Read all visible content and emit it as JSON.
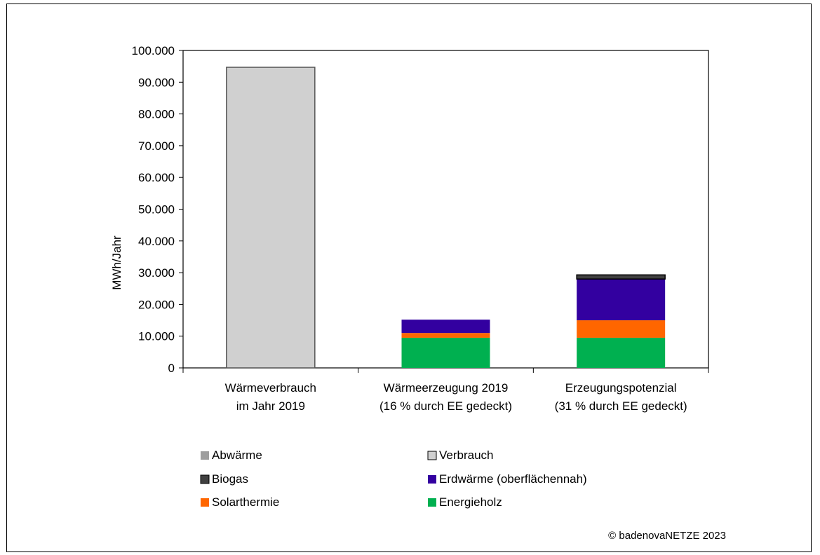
{
  "chart_data": {
    "type": "bar",
    "stacked": true,
    "ylabel": "MWh/Jahr",
    "ylim": [
      0,
      100000
    ],
    "yticks": [
      0,
      10000,
      20000,
      30000,
      40000,
      50000,
      60000,
      70000,
      80000,
      90000,
      100000
    ],
    "ytick_labels": [
      "0",
      "10.000",
      "20.000",
      "30.000",
      "40.000",
      "50.000",
      "60.000",
      "70.000",
      "80.000",
      "90.000",
      "100.000"
    ],
    "categories": [
      [
        "Wärmeverbrauch",
        "im Jahr 2019"
      ],
      [
        "Wärmeerzeugung 2019",
        "(16 % durch EE gedeckt)"
      ],
      [
        "Erzeugungspotenzial",
        "(31 % durch EE gedeckt)"
      ]
    ],
    "series": [
      {
        "name": "Energieholz",
        "color": "#00b050",
        "values": [
          0,
          9500,
          9500
        ]
      },
      {
        "name": "Solarthermie",
        "color": "#ff6600",
        "values": [
          0,
          1500,
          5500
        ]
      },
      {
        "name": "Erdwärme (oberflächennah)",
        "color": "#3300a0",
        "values": [
          0,
          4200,
          13000
        ]
      },
      {
        "name": "Biogas",
        "color": "#404040",
        "values": [
          0,
          0,
          1300
        ]
      },
      {
        "name": "Abwärme",
        "color": "#9e9e9e",
        "values": [
          0,
          0,
          0
        ]
      },
      {
        "name": "Verbrauch",
        "color": "#d0d0d0",
        "values": [
          94700,
          0,
          0
        ]
      }
    ],
    "legend": [
      {
        "name": "Abwärme",
        "color": "#9e9e9e"
      },
      {
        "name": "Verbrauch",
        "color": "#d0d0d0"
      },
      {
        "name": "Biogas",
        "color": "#404040"
      },
      {
        "name": "Erdwärme (oberflächennah)",
        "color": "#3300a0"
      },
      {
        "name": "Solarthermie",
        "color": "#ff6600"
      },
      {
        "name": "Energieholz",
        "color": "#00b050"
      }
    ],
    "legend_position": "bottom",
    "grid": false
  },
  "copyright": "© badenovaNETZE 2023"
}
